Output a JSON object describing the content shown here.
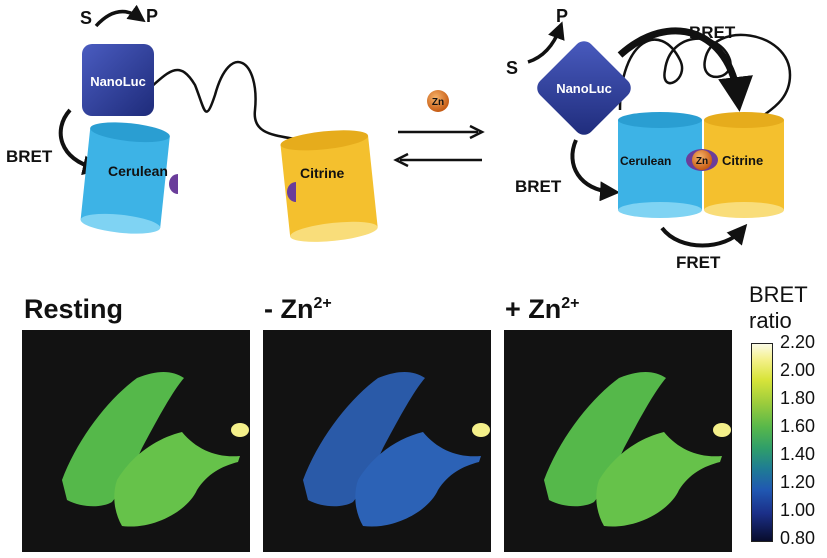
{
  "diagram": {
    "left": {
      "substrate": "S",
      "product": "P",
      "nanoluc": "NanoLuc",
      "bret": "BRET",
      "cerulean": "Cerulean",
      "citrine": "Citrine"
    },
    "center": {
      "ion": "Zn"
    },
    "right": {
      "substrate": "S",
      "product": "P",
      "nanoluc": "NanoLuc",
      "bret_top": "BRET",
      "bret_left": "BRET",
      "cerulean": "Cerulean",
      "ion": "Zn",
      "citrine": "Citrine",
      "fret": "FRET"
    }
  },
  "panels": [
    {
      "label": "Resting",
      "charge": ""
    },
    {
      "label": "- Zn",
      "charge": "2+"
    },
    {
      "label": "+ Zn",
      "charge": "2+"
    }
  ],
  "colorbar": {
    "title_line1": "BRET",
    "title_line2": "ratio",
    "ticks": [
      "2.20",
      "2.00",
      "1.80",
      "1.60",
      "1.40",
      "1.20",
      "1.00",
      "0.80"
    ]
  },
  "colors": {
    "nanoluc": "#2b3c9a",
    "cerulean": "#3db3e6",
    "citrine": "#f4c02e",
    "zinc": "#e07a2a",
    "binding_site": "#6a3d9a"
  }
}
